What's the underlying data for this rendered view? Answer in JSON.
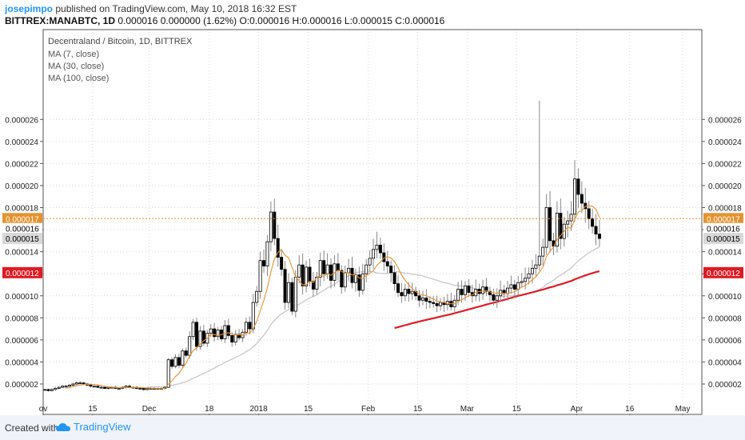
{
  "header": {
    "username": "josepimpo",
    "published_text": "published on TradingView.com, May 10, 2018 16:32 EST",
    "symbol": "BITTREX:MANABTC, 1D",
    "ohlc_text": "0.000016 0.000000 (1.62%) O:0.000016 H:0.000016 L:0.000015 C:0.000016"
  },
  "footer": {
    "created_label": "Created with",
    "brand": "TradingView",
    "brand_icon": "tradingview-cloud-icon"
  },
  "legend": {
    "title": "Decentraland / Bitcoin, 1D, BITTREX",
    "items": [
      "MA (7, close)",
      "MA (30, close)",
      "MA (100, close)"
    ]
  },
  "colors": {
    "candle": "#000000",
    "ma7": "#e6922e",
    "ma30": "#c8c8c8",
    "ma100": "#e01b24",
    "badge_ma7": "#e6922e",
    "badge_ma100": "#e01b24",
    "grid": "#d7d7d7"
  },
  "price_badges": [
    {
      "value": "0.000017",
      "price": 1.7e-05,
      "color": "#e6922e",
      "text_color": "#ffffff"
    },
    {
      "value": "0.000016",
      "price": 1.61e-05,
      "color": "#ffffff",
      "text_color": "#000000"
    },
    {
      "value": "0.000015",
      "price": 1.52e-05,
      "color": "#d8d8d8",
      "text_color": "#000000"
    },
    {
      "value": "0.000012",
      "price": 1.21e-05,
      "color": "#e01b24",
      "text_color": "#ffffff"
    }
  ],
  "chart_data": {
    "type": "candlestick",
    "title": "Decentraland / Bitcoin, 1D, BITTREX",
    "ylim": [
      1e-06,
      2.77e-05
    ],
    "y_ticks": [
      "0.000002",
      "0.000004",
      "0.000006",
      "0.000008",
      "0.000010",
      "0.000012",
      "0.000014",
      "0.000016",
      "0.000018",
      "0.000020",
      "0.000022",
      "0.000024",
      "0.000026"
    ],
    "x_ticks": [
      {
        "label": "ov",
        "day": 0
      },
      {
        "label": "15",
        "day": 14
      },
      {
        "label": "Dec",
        "day": 30
      },
      {
        "label": "18",
        "day": 47
      },
      {
        "label": "2018",
        "day": 61
      },
      {
        "label": "15",
        "day": 75
      },
      {
        "label": "Feb",
        "day": 92
      },
      {
        "label": "15",
        "day": 106
      },
      {
        "label": "Mar",
        "day": 120
      },
      {
        "label": "15",
        "day": 134
      },
      {
        "label": "Apr",
        "day": 151
      },
      {
        "label": "16",
        "day": 166
      },
      {
        "label": "May",
        "day": 181
      }
    ],
    "grid": true,
    "legend_position": "top-left",
    "close_series": [
      1.5,
      1.4,
      1.5,
      1.6,
      1.7,
      1.8,
      1.8,
      1.9,
      2.0,
      2.1,
      2.1,
      2.0,
      1.9,
      1.8,
      1.8,
      1.7,
      1.7,
      1.6,
      1.7,
      1.7,
      1.6,
      1.6,
      1.7,
      1.8,
      1.7,
      1.7,
      1.6,
      1.6,
      1.5,
      1.6,
      1.6,
      1.6,
      1.6,
      1.6,
      1.7,
      4.2,
      3.6,
      4.4,
      3.7,
      5.0,
      4.6,
      6.3,
      7.6,
      5.4,
      6.8,
      5.7,
      6.6,
      7.0,
      6.3,
      6.9,
      6.1,
      7.3,
      6.4,
      5.8,
      6.5,
      6.2,
      6.7,
      7.6,
      7.0,
      9.4,
      10.4,
      13.2,
      12.7,
      14.9,
      17.6,
      15.2,
      13.5,
      12.4,
      9.4,
      11.2,
      8.6,
      11.7,
      12.8,
      10.9,
      12.6,
      11.3,
      10.6,
      11.7,
      13.2,
      12.0,
      12.8,
      11.4,
      12.9,
      12.3,
      10.8,
      12.1,
      12.5,
      11.2,
      11.9,
      10.5,
      12.0,
      12.8,
      13.4,
      14.2,
      14.6,
      13.9,
      13.1,
      12.7,
      12.1,
      11.1,
      10.3,
      10.0,
      10.6,
      10.2,
      10.4,
      10.0,
      9.6,
      9.8,
      9.5,
      9.4,
      9.3,
      9.1,
      9.4,
      9.2,
      9.5,
      9.0,
      9.6,
      10.6,
      10.1,
      10.9,
      10.3,
      10.0,
      10.6,
      10.2,
      10.8,
      10.4,
      10.1,
      9.6,
      10.0,
      10.5,
      10.2,
      10.7,
      11.0,
      10.6,
      11.2,
      11.3,
      11.6,
      12.0,
      12.5,
      12.8,
      13.6,
      14.4,
      18.0,
      15.0,
      14.5,
      17.5,
      15.2,
      16.5,
      16.8,
      17.4,
      20.6,
      19.2,
      18.4,
      17.9,
      17.0,
      16.3,
      15.6,
      15.2
    ],
    "series": [
      {
        "name": "MA (7, close)",
        "type": "line",
        "color": "#e6922e"
      },
      {
        "name": "MA (30, close)",
        "type": "line",
        "color": "#c8c8c8"
      },
      {
        "name": "MA (100, close)",
        "type": "line",
        "color": "#e01b24"
      }
    ],
    "value_scale": "close values are in units of 1e-6 BTC"
  }
}
